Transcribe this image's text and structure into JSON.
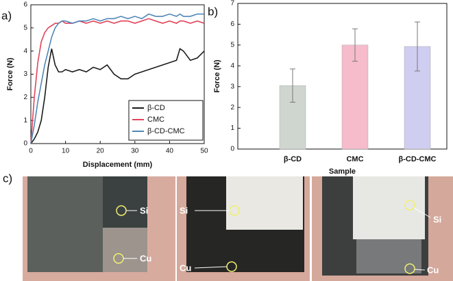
{
  "chart_data": [
    {
      "type": "line",
      "xlabel": "Displacement (mm)",
      "ylabel": "Force (N)",
      "x": [
        0,
        1,
        2,
        3,
        4,
        5,
        6,
        7,
        8,
        9,
        10,
        12,
        14,
        16,
        18,
        20,
        22,
        24,
        26,
        28,
        30,
        32,
        34,
        36,
        38,
        40,
        42,
        43,
        44,
        46,
        48,
        50
      ],
      "series": [
        {
          "name": "β-CD",
          "color": "#1a1a1a",
          "values": [
            0,
            0.2,
            0.5,
            1.0,
            2.0,
            3.3,
            4.1,
            3.4,
            3.1,
            3.1,
            3.2,
            3.1,
            3.2,
            3.1,
            3.3,
            3.2,
            3.4,
            3.0,
            2.8,
            2.8,
            3.0,
            3.1,
            3.2,
            3.3,
            3.4,
            3.5,
            3.6,
            4.1,
            4.0,
            3.6,
            3.7,
            4.0
          ]
        },
        {
          "name": "CMC",
          "color": "#e0435a",
          "values": [
            0,
            2.0,
            3.5,
            4.4,
            4.8,
            5.0,
            5.1,
            5.2,
            5.2,
            5.3,
            5.2,
            5.2,
            5.3,
            5.2,
            5.3,
            5.2,
            5.3,
            5.2,
            5.3,
            5.3,
            5.2,
            5.3,
            5.4,
            5.3,
            5.2,
            5.3,
            5.2,
            5.3,
            5.3,
            5.2,
            5.3,
            5.2
          ]
        },
        {
          "name": "β-CD-CMC",
          "color": "#4f86b8",
          "values": [
            0,
            0.8,
            1.8,
            2.6,
            3.4,
            4.0,
            4.6,
            5.0,
            5.2,
            5.3,
            5.3,
            5.2,
            5.3,
            5.3,
            5.4,
            5.3,
            5.4,
            5.4,
            5.5,
            5.4,
            5.5,
            5.4,
            5.6,
            5.5,
            5.5,
            5.6,
            5.5,
            5.6,
            5.5,
            5.5,
            5.6,
            5.6
          ]
        }
      ],
      "xlim": [
        0,
        50
      ],
      "xticks": [
        0,
        10,
        20,
        30,
        40,
        50
      ],
      "ylim": [
        0,
        6
      ],
      "yticks": [
        0,
        1,
        2,
        3,
        4,
        5,
        6
      ],
      "legend": "lower-right"
    },
    {
      "type": "bar",
      "xlabel": "Sample",
      "ylabel": "Force (N)",
      "categories": [
        "β-CD",
        "CMC",
        "β-CD-CMC"
      ],
      "values": [
        3.05,
        5.0,
        4.93
      ],
      "errors": [
        0.8,
        0.78,
        1.18
      ],
      "colors": [
        "#cfd6cf",
        "#f6bccb",
        "#cfcdf0"
      ],
      "ylim": [
        0,
        7
      ],
      "yticks": [
        0,
        1,
        2,
        3,
        4,
        5,
        6,
        7
      ]
    }
  ],
  "panel_labels": [
    "a)",
    "b)",
    "c)"
  ],
  "photos": [
    {
      "labels": [
        "Si",
        "Cu"
      ]
    },
    {
      "labels": [
        "Si",
        "Cu"
      ]
    },
    {
      "labels": [
        "Si",
        "Cu"
      ]
    }
  ]
}
